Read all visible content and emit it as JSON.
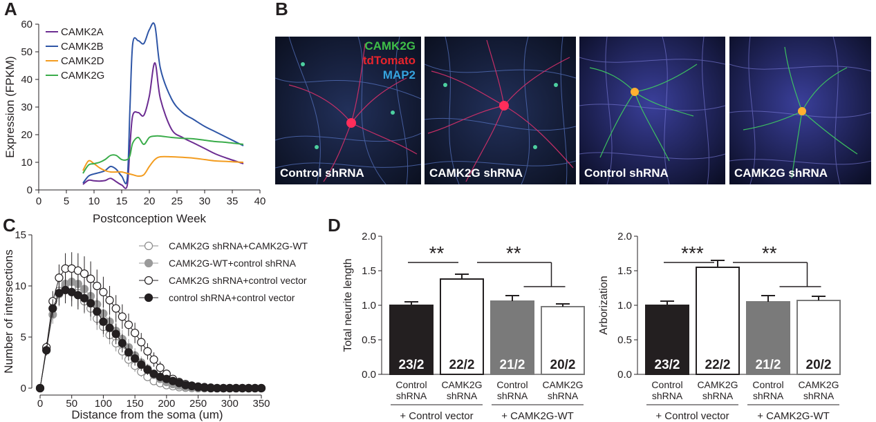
{
  "panel_letters": [
    "A",
    "B",
    "C",
    "D"
  ],
  "colors": {
    "CAMK2A": "#6b2c91",
    "CAMK2B": "#2e55a6",
    "CAMK2D": "#f39c1f",
    "CAMK2G": "#3aac4a",
    "camk2g_stain": "#3fbf48",
    "tdtomato_stain": "#e8242c",
    "map2_stain": "#35a3dd"
  },
  "panel_b": {
    "stain_labels": [
      "CAMK2G",
      "tdTomato",
      "MAP2"
    ],
    "images": [
      {
        "caption": "Control shRNA",
        "icon": "microscopy-neuron-red"
      },
      {
        "caption": "CAMK2G shRNA",
        "icon": "microscopy-neuron-red"
      },
      {
        "caption": "Control shRNA",
        "icon": "microscopy-neuron-green"
      },
      {
        "caption": "CAMK2G shRNA",
        "icon": "microscopy-neuron-green"
      }
    ]
  },
  "chart_data": [
    {
      "panel": "A",
      "type": "line",
      "xlabel": "Postconception Week",
      "ylabel": "Expression (FPKM)",
      "xlim": [
        0,
        40
      ],
      "ylim": [
        0,
        60
      ],
      "xticks": [
        "0",
        "5",
        "10",
        "15",
        "20",
        "25",
        "30",
        "35",
        "40"
      ],
      "yticks": [
        "0",
        "10",
        "20",
        "30",
        "40",
        "50",
        "60"
      ],
      "legend_position": "top-left",
      "series": [
        {
          "name": "CAMK2A",
          "x": [
            8,
            9,
            10,
            11,
            12,
            13,
            14,
            15,
            16,
            16.5,
            17,
            18,
            19,
            20,
            21,
            22,
            24,
            26,
            28,
            30,
            32,
            34,
            37
          ],
          "y": [
            2,
            3.5,
            3.3,
            3.2,
            3.4,
            4.2,
            3,
            1.8,
            1.6,
            16,
            27,
            28,
            27,
            34,
            46,
            33,
            22,
            19,
            17,
            15,
            13,
            11.5,
            9.5
          ]
        },
        {
          "name": "CAMK2B",
          "x": [
            8,
            9,
            10,
            11,
            12,
            13,
            14,
            15,
            16,
            16.5,
            17,
            18,
            19,
            20,
            21,
            22,
            24,
            26,
            28,
            30,
            32,
            34,
            37
          ],
          "y": [
            2.5,
            5,
            5.8,
            6.3,
            7,
            8.5,
            7.5,
            5,
            4,
            30,
            53,
            54,
            53,
            58,
            59.5,
            44,
            33,
            28,
            25.5,
            23,
            21,
            19,
            16
          ]
        },
        {
          "name": "CAMK2D",
          "x": [
            8,
            9,
            10,
            11,
            12,
            13,
            14,
            15,
            16,
            17,
            18,
            19,
            20,
            21,
            22,
            24,
            26,
            28,
            30,
            32,
            34,
            37
          ],
          "y": [
            7,
            10.5,
            9.5,
            8,
            7,
            6.5,
            6.5,
            6.5,
            6,
            5.5,
            5,
            5.5,
            8.5,
            11,
            12,
            12,
            11.8,
            11.5,
            11,
            10.5,
            10.3,
            10
          ]
        },
        {
          "name": "CAMK2G",
          "x": [
            8,
            9,
            10,
            11,
            12,
            13,
            14,
            15,
            16,
            16.5,
            17,
            18,
            19,
            20,
            21,
            22,
            24,
            26,
            28,
            30,
            32,
            34,
            37
          ],
          "y": [
            6,
            9,
            9.5,
            10,
            11,
            12.5,
            12.5,
            11,
            11,
            12.5,
            17,
            19,
            16.5,
            19,
            19.5,
            19.5,
            19,
            18.7,
            18.5,
            18,
            17.5,
            17.2,
            16.5
          ]
        }
      ]
    },
    {
      "panel": "C",
      "type": "line",
      "xlabel": "Distance from the soma (um)",
      "ylabel": "Number of intersections",
      "xlim": [
        0,
        350
      ],
      "ylim": [
        0,
        15
      ],
      "xticks": [
        "0",
        "50",
        "100",
        "150",
        "200",
        "250",
        "300",
        "350"
      ],
      "yticks": [
        "0",
        "5",
        "10",
        "15"
      ],
      "legend_position": "top-right",
      "x": [
        0,
        10,
        20,
        30,
        40,
        50,
        60,
        70,
        80,
        90,
        100,
        110,
        120,
        130,
        140,
        150,
        160,
        170,
        180,
        190,
        200,
        210,
        220,
        230,
        240,
        250,
        260,
        270,
        280,
        290,
        300,
        310,
        320,
        330,
        340,
        350
      ],
      "series": [
        {
          "name": "CAMK2G shRNA+CAMK2G-WT",
          "marker": "open-grey",
          "y": [
            0,
            3.8,
            7.8,
            9.5,
            10,
            9.8,
            9.3,
            8.5,
            7.8,
            6.8,
            6.0,
            5.2,
            4.4,
            3.6,
            2.8,
            2.2,
            1.6,
            1.1,
            0.7,
            0.5,
            0.3,
            0.2,
            0.1,
            0.05,
            0.02,
            0,
            0,
            0,
            0,
            0,
            0,
            0,
            0,
            0,
            0,
            0
          ],
          "err": [
            0,
            0.4,
            0.8,
            1.0,
            1.2,
            1.3,
            1.3,
            1.2,
            1.2,
            1.1,
            1.0,
            0.9,
            0.8,
            0.8,
            0.7,
            0.6,
            0.5,
            0.4,
            0.3,
            0.2,
            0.2,
            0.1,
            0.1,
            0,
            0,
            0,
            0,
            0,
            0,
            0,
            0,
            0,
            0,
            0,
            0,
            0
          ]
        },
        {
          "name": "CAMK2G-WT+control shRNA",
          "marker": "filled-grey",
          "y": [
            0,
            3.8,
            7.2,
            9.2,
            10.2,
            10.4,
            10.2,
            9.7,
            9.0,
            8.2,
            7.3,
            6.5,
            5.6,
            4.8,
            4.0,
            3.2,
            2.5,
            1.9,
            1.3,
            0.9,
            0.6,
            0.4,
            0.25,
            0.15,
            0.1,
            0.05,
            0,
            0,
            0,
            0,
            0,
            0,
            0,
            0,
            0,
            0
          ],
          "err": [
            0,
            0.5,
            0.9,
            1.2,
            1.4,
            1.5,
            1.5,
            1.5,
            1.4,
            1.3,
            1.2,
            1.1,
            1.0,
            0.9,
            0.8,
            0.7,
            0.6,
            0.5,
            0.4,
            0.3,
            0.2,
            0.2,
            0.1,
            0.1,
            0,
            0,
            0,
            0,
            0,
            0,
            0,
            0,
            0,
            0,
            0,
            0
          ]
        },
        {
          "name": "CAMK2G shRNA+control vector",
          "marker": "open-black",
          "y": [
            0,
            4.0,
            8.5,
            10.8,
            11.7,
            11.7,
            11.5,
            11.2,
            10.7,
            10.0,
            9.4,
            8.6,
            7.8,
            7.0,
            6.2,
            5.4,
            4.5,
            3.6,
            2.8,
            2.0,
            1.4,
            0.9,
            0.6,
            0.4,
            0.25,
            0.15,
            0.1,
            0.05,
            0,
            0,
            0,
            0,
            0,
            0,
            0,
            0
          ],
          "err": [
            0,
            0.5,
            1.0,
            1.3,
            1.5,
            1.6,
            1.7,
            1.7,
            1.7,
            1.6,
            1.5,
            1.4,
            1.3,
            1.2,
            1.1,
            1.0,
            0.9,
            0.8,
            0.7,
            0.6,
            0.4,
            0.3,
            0.2,
            0.2,
            0.1,
            0.1,
            0,
            0,
            0,
            0,
            0,
            0,
            0,
            0,
            0,
            0
          ]
        },
        {
          "name": "control shRNA+control vector",
          "marker": "filled-black",
          "y": [
            0,
            3.7,
            7.8,
            9.3,
            9.6,
            9.4,
            9.1,
            8.8,
            8.3,
            7.5,
            6.5,
            5.9,
            5.3,
            4.4,
            3.5,
            2.9,
            2.3,
            1.8,
            1.4,
            1.1,
            0.9,
            0.7,
            0.5,
            0.3,
            0.2,
            0.1,
            0.05,
            0,
            0,
            0,
            0,
            0,
            0,
            0,
            0,
            0
          ],
          "err": [
            0,
            0.5,
            0.9,
            1.2,
            1.3,
            1.4,
            1.4,
            1.4,
            1.3,
            1.3,
            1.2,
            1.1,
            1.0,
            0.9,
            0.8,
            0.7,
            0.6,
            0.5,
            0.4,
            0.3,
            0.3,
            0.2,
            0.2,
            0.1,
            0.1,
            0,
            0,
            0,
            0,
            0,
            0,
            0,
            0,
            0,
            0,
            0
          ]
        }
      ]
    },
    {
      "panel": "D-left",
      "type": "bar",
      "ylabel": "Total neurite length",
      "ylim": [
        0,
        2.0
      ],
      "yticks": [
        "0.0",
        "0.5",
        "1.0",
        "1.5",
        "2.0"
      ],
      "categories": [
        [
          "Control",
          "shRNA"
        ],
        [
          "CAMK2G",
          "shRNA"
        ],
        [
          "Control",
          "shRNA"
        ],
        [
          "CAMK2G",
          "shRNA"
        ]
      ],
      "values": [
        1.0,
        1.38,
        1.06,
        0.98
      ],
      "errors": [
        0.05,
        0.07,
        0.08,
        0.04
      ],
      "bar_fill": [
        "#231f20",
        "#ffffff",
        "#7a7a7a",
        "#ffffff"
      ],
      "bar_stroke": [
        "#231f20",
        "#231f20",
        "#7a7a7a",
        "#7a7a7a"
      ],
      "n_labels": [
        "23/2",
        "22/2",
        "21/2",
        "20/2"
      ],
      "n_label_color": [
        "#ffffff",
        "#231f20",
        "#ffffff",
        "#231f20"
      ],
      "group_labels": [
        "+ Control vector",
        "+ CAMK2G-WT"
      ],
      "significance": [
        "**",
        "**"
      ]
    },
    {
      "panel": "D-right",
      "type": "bar",
      "ylabel": "Arborization",
      "ylim": [
        0,
        2.0
      ],
      "yticks": [
        "0.0",
        "0.5",
        "1.0",
        "1.5",
        "2.0"
      ],
      "categories": [
        [
          "Control",
          "shRNA"
        ],
        [
          "CAMK2G",
          "shRNA"
        ],
        [
          "Control",
          "shRNA"
        ],
        [
          "CAMK2G",
          "shRNA"
        ]
      ],
      "values": [
        1.0,
        1.55,
        1.05,
        1.07
      ],
      "errors": [
        0.06,
        0.1,
        0.09,
        0.06
      ],
      "bar_fill": [
        "#231f20",
        "#ffffff",
        "#7a7a7a",
        "#ffffff"
      ],
      "bar_stroke": [
        "#231f20",
        "#231f20",
        "#7a7a7a",
        "#7a7a7a"
      ],
      "n_labels": [
        "23/2",
        "22/2",
        "21/2",
        "20/2"
      ],
      "n_label_color": [
        "#ffffff",
        "#231f20",
        "#ffffff",
        "#231f20"
      ],
      "group_labels": [
        "+ Control vector",
        "+ CAMK2G-WT"
      ],
      "significance": [
        "***",
        "**"
      ]
    }
  ]
}
